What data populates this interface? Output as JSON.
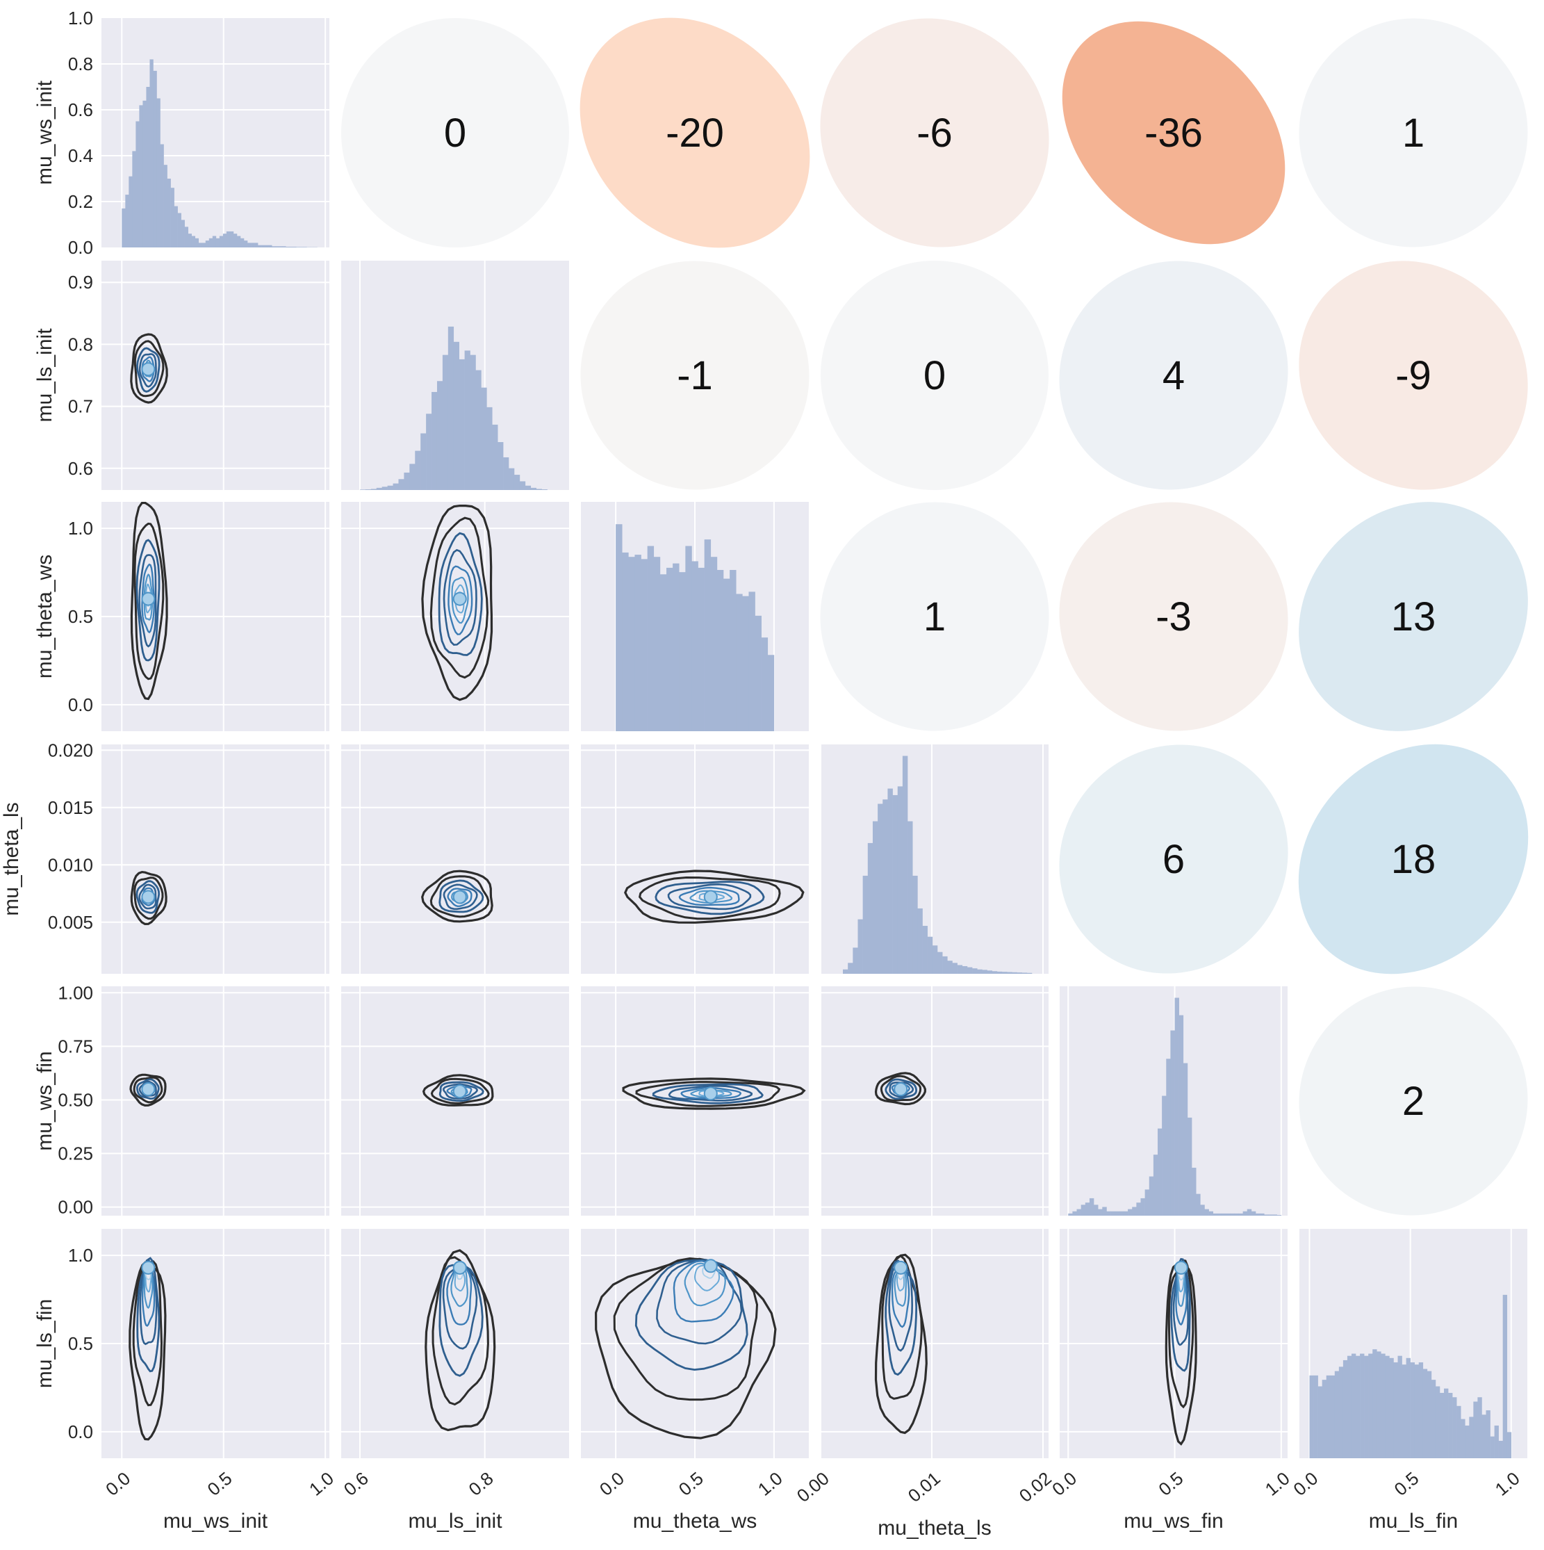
{
  "chart_data": {
    "type": "pairplot",
    "variables": [
      "mu_ws_init",
      "mu_ls_init",
      "mu_theta_ws",
      "mu_theta_ls",
      "mu_ws_fin",
      "mu_ls_fin"
    ],
    "axes": [
      {
        "name": "mu_ws_init",
        "range": [
          -0.1,
          1.02
        ],
        "ticks": [
          0.0,
          0.5,
          1.0
        ],
        "tick_labels": [
          "0.0",
          "0.5",
          "1.0"
        ]
      },
      {
        "name": "mu_ls_init",
        "range": [
          0.57,
          0.935
        ],
        "ticks": [
          0.6,
          0.8
        ],
        "tick_labels": [
          "0.6",
          "0.8"
        ]
      },
      {
        "name": "mu_theta_ws",
        "range": [
          -0.22,
          1.22
        ],
        "ticks": [
          0.0,
          0.5,
          1.0
        ],
        "tick_labels": [
          "0.0",
          "0.5",
          "1.0"
        ]
      },
      {
        "name": "mu_theta_ls",
        "range": [
          0.0,
          0.0205
        ],
        "ticks": [
          0.0,
          0.01,
          0.02
        ],
        "tick_labels": [
          "0.00",
          "0.01",
          "0.02"
        ]
      },
      {
        "name": "mu_ws_fin",
        "range": [
          -0.04,
          1.03
        ],
        "ticks": [
          0.0,
          0.5,
          1.0
        ],
        "tick_labels": [
          "0.0",
          "0.5",
          "1.0"
        ]
      },
      {
        "name": "mu_ls_fin",
        "range": [
          -0.05,
          1.08
        ],
        "ticks": [
          0.0,
          0.5,
          1.0
        ],
        "tick_labels": [
          "0.0",
          "0.5",
          "1.0"
        ]
      }
    ],
    "row_axes": [
      {
        "name": "mu_ws_init",
        "range": [
          0.0,
          1.0
        ],
        "ticks": [
          0.0,
          0.2,
          0.4,
          0.6,
          0.8,
          1.0
        ],
        "tick_labels": [
          "0.0",
          "0.2",
          "0.4",
          "0.6",
          "0.8",
          "1.0"
        ]
      },
      {
        "name": "mu_ls_init",
        "range": [
          0.565,
          0.935
        ],
        "ticks": [
          0.6,
          0.7,
          0.8,
          0.9
        ],
        "tick_labels": [
          "0.6",
          "0.7",
          "0.8",
          "0.9"
        ]
      },
      {
        "name": "mu_theta_ws",
        "range": [
          -0.15,
          1.15
        ],
        "ticks": [
          0.0,
          0.5,
          1.0
        ],
        "tick_labels": [
          "0.0",
          "0.5",
          "1.0"
        ]
      },
      {
        "name": "mu_theta_ls",
        "range": [
          0.0005,
          0.0205
        ],
        "ticks": [
          0.005,
          0.01,
          0.015,
          0.02
        ],
        "tick_labels": [
          "0.005",
          "0.010",
          "0.015",
          "0.020"
        ]
      },
      {
        "name": "mu_ws_fin",
        "range": [
          -0.04,
          1.03
        ],
        "ticks": [
          0.0,
          0.25,
          0.5,
          0.75,
          1.0
        ],
        "tick_labels": [
          "0.00",
          "0.25",
          "0.50",
          "0.75",
          "1.00"
        ]
      },
      {
        "name": "mu_ls_fin",
        "range": [
          -0.15,
          1.15
        ],
        "ticks": [
          0.0,
          0.5,
          1.0
        ],
        "tick_labels": [
          "0.0",
          "0.5",
          "1.0"
        ]
      }
    ],
    "histograms": [
      {
        "variable": "mu_ws_init",
        "bins": [
          0.0,
          0.96
        ],
        "heights": [
          0.17,
          0.23,
          0.31,
          0.42,
          0.55,
          0.62,
          0.64,
          0.7,
          0.82,
          0.77,
          0.65,
          0.45,
          0.36,
          0.3,
          0.26,
          0.18,
          0.15,
          0.12,
          0.09,
          0.06,
          0.05,
          0.04,
          0.02,
          0.02,
          0.03,
          0.04,
          0.05,
          0.04,
          0.05,
          0.06,
          0.07,
          0.07,
          0.06,
          0.05,
          0.04,
          0.03,
          0.02,
          0.02,
          0.02,
          0.01,
          0.01,
          0.01,
          0.01,
          0.005,
          0.005,
          0.005,
          0.005,
          0.003,
          0.003,
          0.003,
          0.002,
          0.002,
          0.002,
          0.001,
          0.001,
          0.001
        ]
      },
      {
        "variable": "mu_ls_init",
        "bins": [
          0.6,
          0.9
        ],
        "heights": [
          0.002,
          0.003,
          0.005,
          0.01,
          0.015,
          0.02,
          0.03,
          0.05,
          0.08,
          0.12,
          0.18,
          0.26,
          0.35,
          0.45,
          0.5,
          0.62,
          0.75,
          0.68,
          0.6,
          0.64,
          0.62,
          0.55,
          0.47,
          0.38,
          0.3,
          0.22,
          0.15,
          0.1,
          0.07,
          0.04,
          0.02,
          0.01,
          0.005,
          0.003
        ]
      },
      {
        "variable": "mu_theta_ws",
        "bins": [
          0.0,
          1.0
        ],
        "heights": [
          0.95,
          0.82,
          0.8,
          0.81,
          0.79,
          0.85,
          0.8,
          0.72,
          0.75,
          0.77,
          0.73,
          0.85,
          0.78,
          0.75,
          0.88,
          0.8,
          0.74,
          0.7,
          0.74,
          0.63,
          0.62,
          0.64,
          0.53,
          0.43,
          0.35
        ]
      },
      {
        "variable": "mu_theta_ls",
        "bins": [
          0.002,
          0.019
        ],
        "heights": [
          0.02,
          0.05,
          0.12,
          0.25,
          0.45,
          0.6,
          0.7,
          0.78,
          0.8,
          0.85,
          0.82,
          0.86,
          1.0,
          0.7,
          0.45,
          0.3,
          0.22,
          0.17,
          0.13,
          0.1,
          0.08,
          0.06,
          0.05,
          0.04,
          0.035,
          0.03,
          0.025,
          0.02,
          0.018,
          0.015,
          0.012,
          0.01,
          0.009,
          0.008,
          0.007,
          0.006,
          0.005,
          0.004
        ]
      },
      {
        "variable": "mu_ws_fin",
        "bins": [
          0.0,
          1.0
        ],
        "heights": [
          0.01,
          0.02,
          0.03,
          0.05,
          0.06,
          0.08,
          0.05,
          0.03,
          0.04,
          0.02,
          0.02,
          0.02,
          0.02,
          0.02,
          0.03,
          0.04,
          0.06,
          0.08,
          0.12,
          0.18,
          0.28,
          0.4,
          0.55,
          0.72,
          0.85,
          1.0,
          0.92,
          0.7,
          0.45,
          0.22,
          0.1,
          0.05,
          0.03,
          0.02,
          0.01,
          0.01,
          0.01,
          0.01,
          0.01,
          0.01,
          0.01,
          0.02,
          0.03,
          0.02,
          0.01,
          0.01,
          0.005,
          0.005,
          0.005,
          0.003
        ]
      },
      {
        "variable": "mu_ls_fin",
        "bins": [
          0.0,
          1.0
        ],
        "heights": [
          0.38,
          0.38,
          0.33,
          0.36,
          0.38,
          0.38,
          0.4,
          0.42,
          0.45,
          0.47,
          0.48,
          0.47,
          0.48,
          0.47,
          0.48,
          0.5,
          0.49,
          0.48,
          0.47,
          0.46,
          0.44,
          0.47,
          0.43,
          0.46,
          0.44,
          0.43,
          0.44,
          0.41,
          0.4,
          0.36,
          0.33,
          0.3,
          0.32,
          0.3,
          0.28,
          0.24,
          0.18,
          0.15,
          0.19,
          0.26,
          0.28,
          0.2,
          0.22,
          0.1,
          0.15,
          0.08,
          0.75,
          0.12
        ]
      }
    ],
    "correlations": [
      {
        "row": "mu_ws_init",
        "col": "mu_ls_init",
        "value": 0,
        "color": "#f5f6f7"
      },
      {
        "row": "mu_ws_init",
        "col": "mu_theta_ws",
        "value": -20,
        "color": "#fddbc7"
      },
      {
        "row": "mu_ws_init",
        "col": "mu_theta_ls",
        "value": -6,
        "color": "#f7ece8"
      },
      {
        "row": "mu_ws_init",
        "col": "mu_ws_fin",
        "value": -36,
        "color": "#f4b393"
      },
      {
        "row": "mu_ws_init",
        "col": "mu_ls_fin",
        "value": 1,
        "color": "#f3f5f7"
      },
      {
        "row": "mu_ls_init",
        "col": "mu_theta_ws",
        "value": -1,
        "color": "#f6f5f4"
      },
      {
        "row": "mu_ls_init",
        "col": "mu_theta_ls",
        "value": 0,
        "color": "#f5f6f7"
      },
      {
        "row": "mu_ls_init",
        "col": "mu_ws_fin",
        "value": 4,
        "color": "#edf1f5"
      },
      {
        "row": "mu_ls_init",
        "col": "mu_ls_fin",
        "value": -9,
        "color": "#f8eae4"
      },
      {
        "row": "mu_theta_ws",
        "col": "mu_theta_ls",
        "value": 1,
        "color": "#f3f5f7"
      },
      {
        "row": "mu_theta_ws",
        "col": "mu_ws_fin",
        "value": -3,
        "color": "#f6efec"
      },
      {
        "row": "mu_theta_ws",
        "col": "mu_ls_fin",
        "value": 13,
        "color": "#dbe9f1"
      },
      {
        "row": "mu_theta_ls",
        "col": "mu_ws_fin",
        "value": 6,
        "color": "#e8f0f4"
      },
      {
        "row": "mu_theta_ls",
        "col": "mu_ls_fin",
        "value": 18,
        "color": "#d1e5f0"
      },
      {
        "row": "mu_ws_fin",
        "col": "mu_ls_fin",
        "value": 2,
        "color": "#f1f4f6"
      }
    ],
    "kde_modes": [
      {
        "row": "mu_ls_init",
        "col": "mu_ws_init",
        "x": 0.13,
        "y": 0.76
      },
      {
        "row": "mu_theta_ws",
        "col": "mu_ws_init",
        "x": 0.13,
        "y": 0.6
      },
      {
        "row": "mu_theta_ws",
        "col": "mu_ls_init",
        "x": 0.76,
        "y": 0.6
      },
      {
        "row": "mu_theta_ls",
        "col": "mu_ws_init",
        "x": 0.13,
        "y": 0.0072
      },
      {
        "row": "mu_theta_ls",
        "col": "mu_ls_init",
        "x": 0.76,
        "y": 0.0072
      },
      {
        "row": "mu_theta_ls",
        "col": "mu_theta_ws",
        "x": 0.6,
        "y": 0.0072
      },
      {
        "row": "mu_ws_fin",
        "col": "mu_ws_init",
        "x": 0.13,
        "y": 0.55
      },
      {
        "row": "mu_ws_fin",
        "col": "mu_ls_init",
        "x": 0.76,
        "y": 0.54
      },
      {
        "row": "mu_ws_fin",
        "col": "mu_theta_ws",
        "x": 0.6,
        "y": 0.53
      },
      {
        "row": "mu_ws_fin",
        "col": "mu_theta_ls",
        "x": 0.0072,
        "y": 0.55
      },
      {
        "row": "mu_ls_fin",
        "col": "mu_ws_init",
        "x": 0.13,
        "y": 0.93
      },
      {
        "row": "mu_ls_fin",
        "col": "mu_ls_init",
        "x": 0.76,
        "y": 0.93
      },
      {
        "row": "mu_ls_fin",
        "col": "mu_theta_ws",
        "x": 0.6,
        "y": 0.94
      },
      {
        "row": "mu_ls_fin",
        "col": "mu_theta_ls",
        "x": 0.0072,
        "y": 0.93
      },
      {
        "row": "mu_ls_fin",
        "col": "mu_ws_fin",
        "x": 0.53,
        "y": 0.93
      }
    ],
    "grid": true,
    "colors": {
      "panel_bg": "#eaeaf2",
      "hist": "#a5b6d5",
      "kde_outer": "#2d2d2d",
      "kde_mid": "#2f5f8f",
      "kde_inner": "#4f95c8",
      "kde_core": "#a8cfea"
    }
  }
}
